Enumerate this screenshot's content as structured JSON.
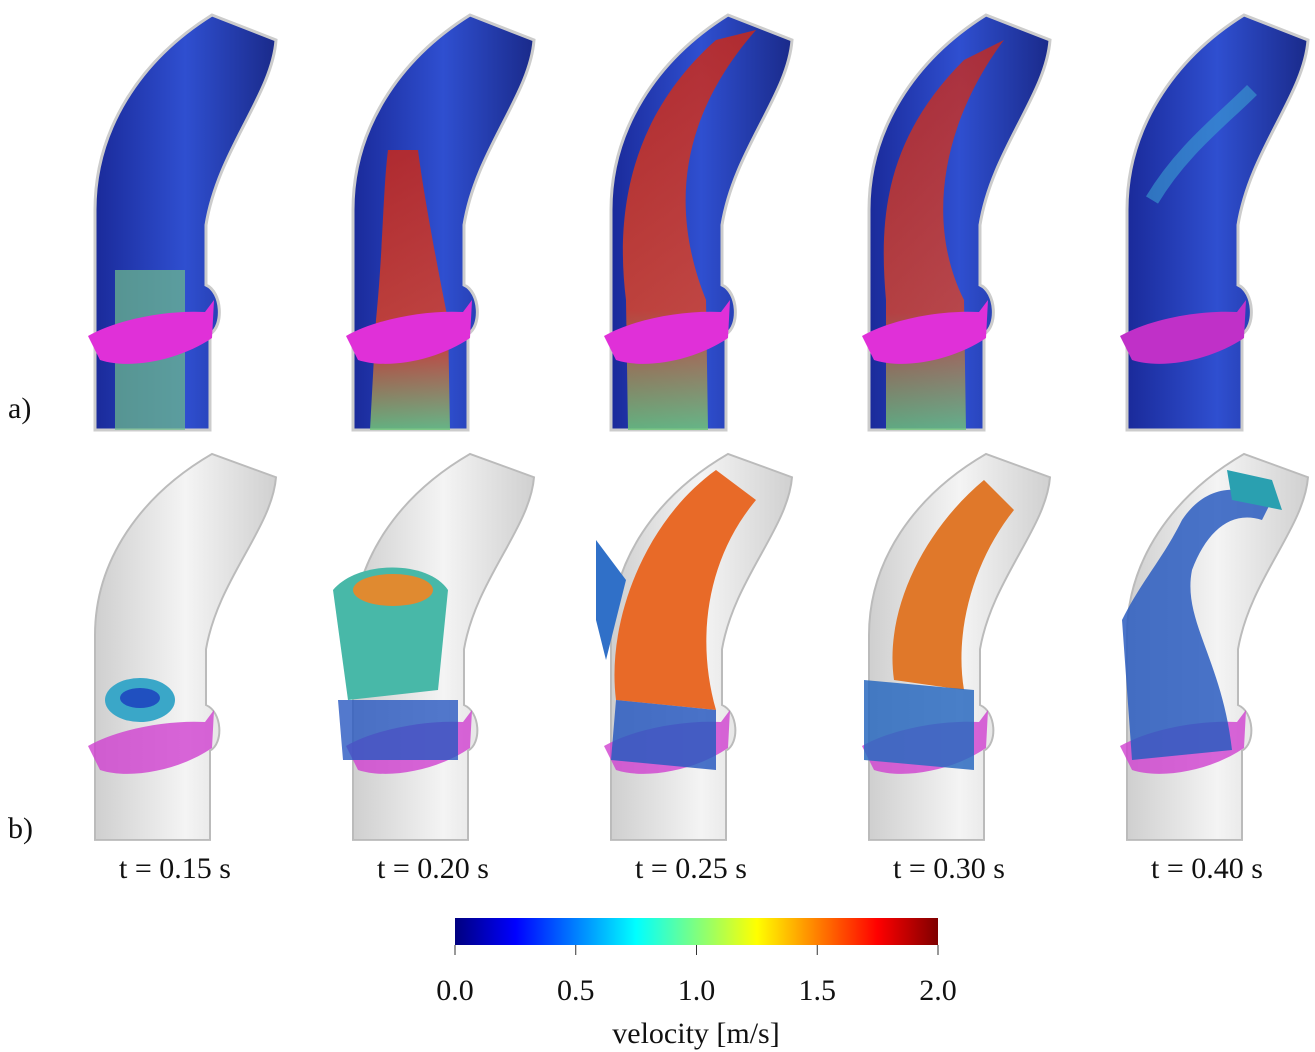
{
  "panel_labels": [
    "a)",
    "b)"
  ],
  "times": [
    "t = 0.15 s",
    "t = 0.20 s",
    "t = 0.25 s",
    "t = 0.30 s",
    "t = 0.40 s"
  ],
  "colorbar": {
    "label": "velocity [m/s]",
    "lim": [
      0,
      2
    ],
    "ticks": [
      {
        "value": 0,
        "label": "0.0"
      },
      {
        "value": 0.5,
        "label": "0.5"
      },
      {
        "value": 1,
        "label": "1.0"
      },
      {
        "value": 1.5,
        "label": "1.5"
      },
      {
        "value": 2,
        "label": "2.0"
      }
    ]
  }
}
